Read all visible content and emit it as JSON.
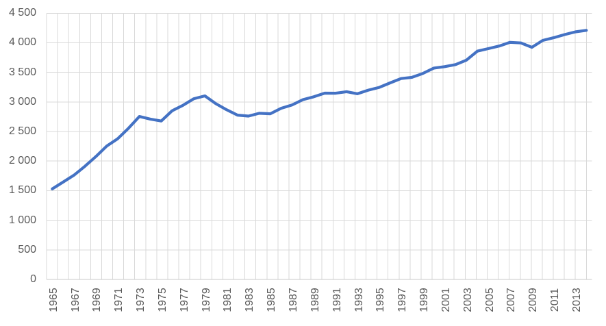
{
  "chart_data": {
    "type": "line",
    "title": "",
    "legend": "none",
    "grid": "both",
    "x": [
      1965,
      1966,
      1967,
      1968,
      1969,
      1970,
      1971,
      1972,
      1973,
      1974,
      1975,
      1976,
      1977,
      1978,
      1979,
      1980,
      1981,
      1982,
      1983,
      1984,
      1985,
      1986,
      1987,
      1988,
      1989,
      1990,
      1991,
      1992,
      1993,
      1994,
      1995,
      1996,
      1997,
      1998,
      1999,
      2000,
      2001,
      2002,
      2003,
      2004,
      2005,
      2006,
      2007,
      2008,
      2009,
      2010,
      2011,
      2012,
      2013,
      2014
    ],
    "series": [
      {
        "name": "",
        "values": [
          1530,
          1646,
          1763,
          1914,
          2077,
          2255,
          2378,
          2556,
          2754,
          2710,
          2678,
          2852,
          2944,
          3055,
          3103,
          2972,
          2868,
          2777,
          2761,
          2809,
          2801,
          2893,
          2949,
          3039,
          3088,
          3149,
          3148,
          3173,
          3139,
          3200,
          3246,
          3323,
          3396,
          3416,
          3481,
          3572,
          3597,
          3632,
          3707,
          3859,
          3902,
          3945,
          4008,
          3997,
          3924,
          4040,
          4085,
          4139,
          4185,
          4211
        ]
      }
    ],
    "xlabel": "",
    "ylabel": "",
    "ylim": [
      0,
      4500
    ],
    "ytick_interval": 500,
    "ytick_labels": [
      "0",
      "500",
      "1 000",
      "1 500",
      "2 000",
      "2 500",
      "3 000",
      "3 500",
      "4 000",
      "4 500"
    ],
    "xtick_labels": [
      "1965",
      "1967",
      "1969",
      "1971",
      "1973",
      "1975",
      "1977",
      "1979",
      "1981",
      "1983",
      "1985",
      "1987",
      "1989",
      "1991",
      "1993",
      "1995",
      "1997",
      "1999",
      "2001",
      "2003",
      "2005",
      "2007",
      "2009",
      "2011",
      "2013"
    ],
    "xtick_label_interval": 2,
    "colors": {
      "series_line": "#4472C4",
      "gridline": "#D9D9D9",
      "axis_line": "#C9C9C9",
      "tick_label": "#595959",
      "background": "#FFFFFF"
    }
  }
}
